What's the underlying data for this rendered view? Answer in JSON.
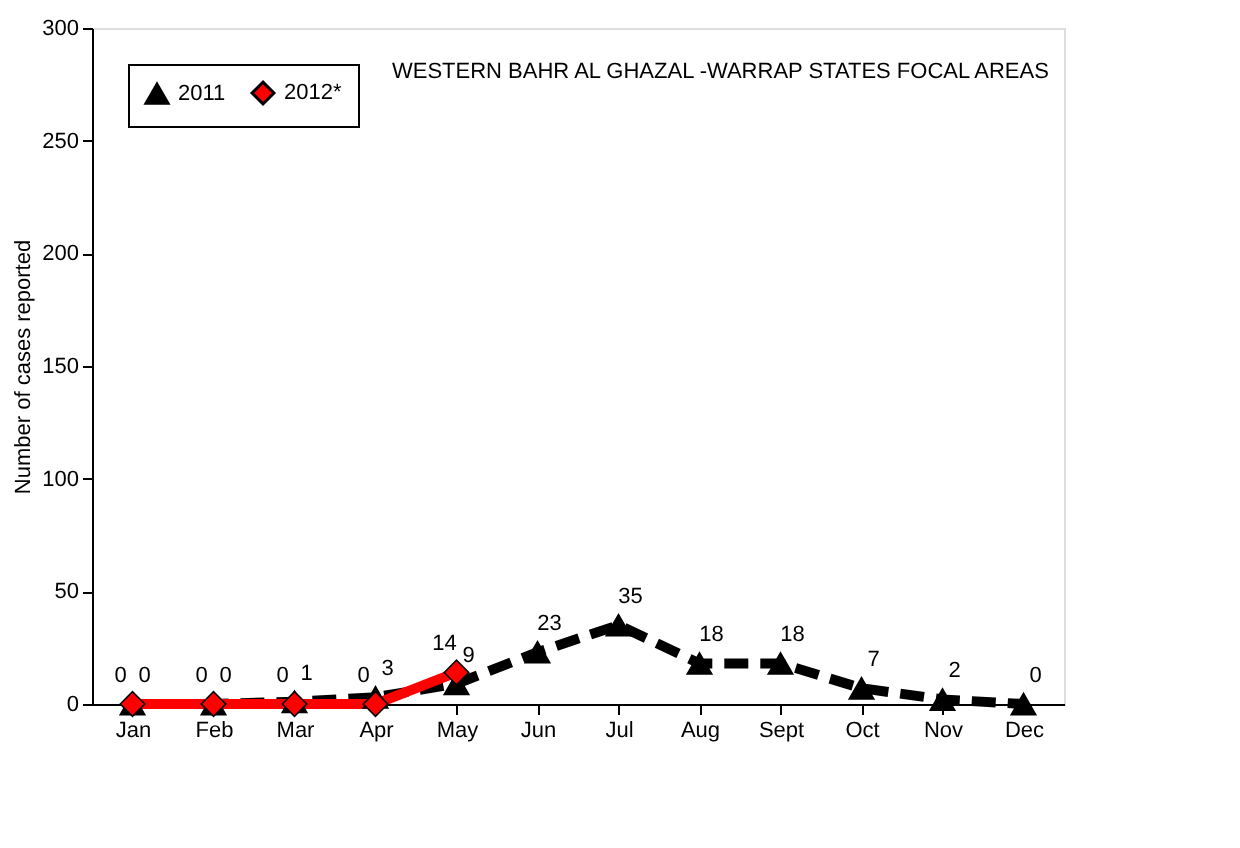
{
  "chart_data": {
    "type": "line",
    "title": "WESTERN BAHR AL GHAZAL -WARRAP STATES FOCAL AREAS",
    "ylabel": "Number of cases reported",
    "categories": [
      "Jan",
      "Feb",
      "Mar",
      "Apr",
      "May",
      "Jun",
      "Jul",
      "Aug",
      "Sept",
      "Oct",
      "Nov",
      "Dec"
    ],
    "series": [
      {
        "name": "2011",
        "color": "#000000",
        "marker": "triangle",
        "line_style": "dashed",
        "values": [
          0,
          0,
          1,
          3,
          9,
          23,
          35,
          18,
          18,
          7,
          2,
          0
        ]
      },
      {
        "name": "2012*",
        "color": "#ff0000",
        "marker": "diamond",
        "line_style": "solid",
        "values": [
          0,
          0,
          0,
          0,
          14,
          null,
          null,
          null,
          null,
          null,
          null,
          null
        ]
      }
    ],
    "ylim": [
      0,
      300
    ],
    "yticks": [
      0,
      50,
      100,
      150,
      200,
      250,
      300
    ],
    "grid": false,
    "legend": "top left",
    "data_labels": true
  }
}
